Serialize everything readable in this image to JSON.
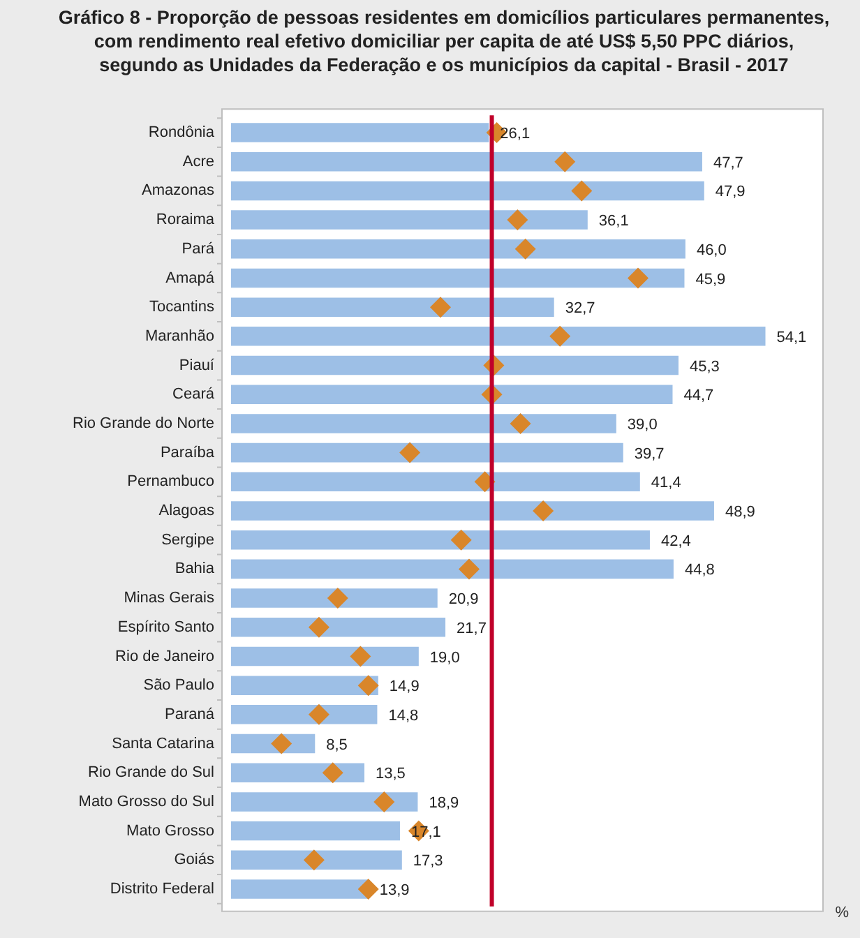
{
  "chart_data": {
    "type": "bar",
    "orientation": "horizontal",
    "title": "Gráfico 8 - Proporção de pessoas residentes em domicílios particulares permanentes, com rendimento real efetivo domiciliar per capita de até US$ 5,50 PPC diários, segundo as Unidades da Federação e os municípios da capital - Brasil - 2017",
    "categories": [
      "Rondônia",
      "Acre",
      "Amazonas",
      "Roraima",
      "Pará",
      "Amapá",
      "Tocantins",
      "Maranhão",
      "Piauí",
      "Ceará",
      "Rio Grande do Norte",
      "Paraíba",
      "Pernambuco",
      "Alagoas",
      "Sergipe",
      "Bahia",
      "Minas Gerais",
      "Espírito Santo",
      "Rio de Janeiro",
      "São Paulo",
      "Paraná",
      "Santa Catarina",
      "Rio Grande do Sul",
      "Mato Grosso do Sul",
      "Mato Grosso",
      "Goiás",
      "Distrito Federal"
    ],
    "series": [
      {
        "color": "#9dbfe6",
        "values": [
          26.1,
          47.7,
          47.9,
          36.1,
          46.0,
          45.9,
          32.7,
          54.1,
          45.3,
          44.7,
          39.0,
          39.7,
          41.4,
          48.9,
          42.4,
          44.8,
          20.9,
          21.7,
          19.0,
          14.9,
          14.8,
          8.5,
          13.5,
          18.9,
          17.1,
          17.3,
          13.9
        ],
        "value_labels": [
          "26,1",
          "47,7",
          "47,9",
          "36,1",
          "46,0",
          "45,9",
          "32,7",
          "54,1",
          "45,3",
          "44,7",
          "39,0",
          "39,7",
          "41,4",
          "48,9",
          "42,4",
          "44,8",
          "20,9",
          "21,7",
          "19,0",
          "14,9",
          "14,8",
          "8,5",
          "13,5",
          "18,9",
          "17,1",
          "17,3",
          "13,9"
        ]
      },
      {
        "type": "scatter",
        "color": "#d9862a",
        "marker": "diamond",
        "values": [
          26.9,
          33.8,
          35.5,
          29.0,
          29.8,
          41.2,
          21.2,
          33.3,
          26.6,
          26.4,
          29.3,
          18.1,
          25.7,
          31.6,
          23.3,
          24.1,
          10.8,
          8.9,
          13.1,
          13.9,
          8.9,
          5.1,
          10.3,
          15.5,
          19.0,
          8.4,
          13.9
        ]
      }
    ],
    "xlim": [
      0,
      60
    ],
    "tick_labels": "y",
    "legend": false,
    "ref_lines": [
      {
        "axis": "x",
        "value": 26.4,
        "color": "#c0002a"
      }
    ],
    "annotations": [
      "%"
    ]
  }
}
